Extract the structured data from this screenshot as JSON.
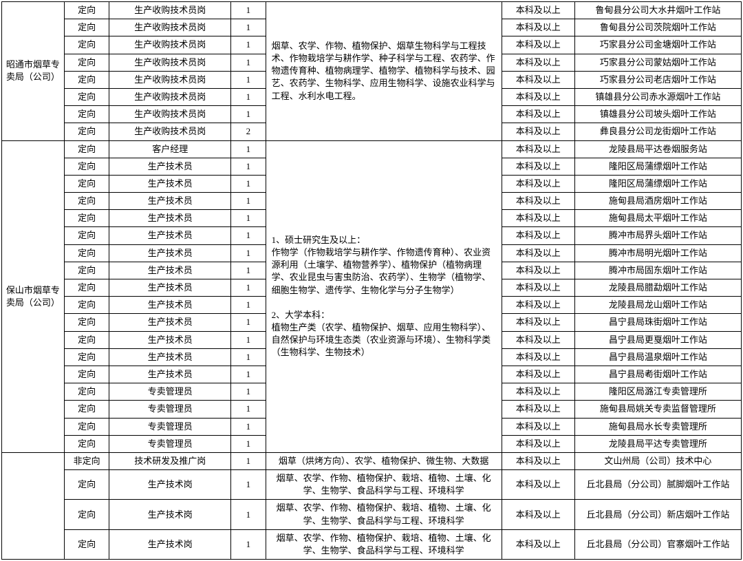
{
  "bureaus": [
    {
      "name": "昭通市烟草专卖局（公司）",
      "major_text": "烟草、农学、作物、植物保护、烟草生物科学与工程技术、作物栽培学与耕作学、种子科学与工程、农药学、作物遗传育种、植物病理学、植物学、植物科学与技术、园艺、农药学、生物科学、应用生物科学、设施农业科学与工程、水利水电工程。",
      "rows": [
        {
          "orient": "定向",
          "position": "生产收购技术员岗",
          "count": "1",
          "degree": "本科及以上",
          "unit": "鲁甸县分公司大水井烟叶工作站"
        },
        {
          "orient": "定向",
          "position": "生产收购技术员岗",
          "count": "1",
          "degree": "本科及以上",
          "unit": "鲁甸县分公司茨院烟叶工作站"
        },
        {
          "orient": "定向",
          "position": "生产收购技术员岗",
          "count": "1",
          "degree": "本科及以上",
          "unit": "巧家县分公司金塘烟叶工作站"
        },
        {
          "orient": "定向",
          "position": "生产收购技术员岗",
          "count": "1",
          "degree": "本科及以上",
          "unit": "巧家县分公司蒙姑烟叶工作站"
        },
        {
          "orient": "定向",
          "position": "生产收购技术员岗",
          "count": "1",
          "degree": "本科及以上",
          "unit": "巧家县分公司老店烟叶工作站"
        },
        {
          "orient": "定向",
          "position": "生产收购技术员岗",
          "count": "1",
          "degree": "本科及以上",
          "unit": "镇雄县分公司赤水源烟叶工作站"
        },
        {
          "orient": "定向",
          "position": "生产收购技术员岗",
          "count": "1",
          "degree": "本科及以上",
          "unit": "镇雄县分公司坡头烟叶工作站"
        },
        {
          "orient": "定向",
          "position": "生产收购技术员岗",
          "count": "2",
          "degree": "本科及以上",
          "unit": "彝良县分公司龙街烟叶工作站"
        }
      ]
    },
    {
      "name": "保山市烟草专卖局（公司）",
      "major_text": "1、硕士研究生及以上：\n作物学（作物栽培学与耕作学、作物遗传育种）、农业资源利用（土壤学、植物营养学）、植物保护（植物病理学、农业昆虫与害虫防治、农药学）、生物学（植物学、细胞生物学、遗传学、生物化学与分子生物学）\n\n2、大学本科：\n植物生产类（农学、植物保护、烟草、应用生物科学）、自然保护与环境生态类（农业资源与环境）、生物科学类（生物科学、生物技术）",
      "rows": [
        {
          "orient": "定向",
          "position": "客户经理",
          "count": "1",
          "degree": "本科及以上",
          "unit": "龙陵县局平达卷烟服务站"
        },
        {
          "orient": "定向",
          "position": "生产技术员",
          "count": "1",
          "degree": "本科及以上",
          "unit": "隆阳区局蒲缥烟叶工作站"
        },
        {
          "orient": "定向",
          "position": "生产技术员",
          "count": "1",
          "degree": "本科及以上",
          "unit": "隆阳区局蒲缥烟叶工作站"
        },
        {
          "orient": "定向",
          "position": "生产技术员",
          "count": "1",
          "degree": "本科及以上",
          "unit": "施甸县局酒房烟叶工作站"
        },
        {
          "orient": "定向",
          "position": "生产技术员",
          "count": "1",
          "degree": "本科及以上",
          "unit": "施甸县局太平烟叶工作站"
        },
        {
          "orient": "定向",
          "position": "生产技术员",
          "count": "1",
          "degree": "本科及以上",
          "unit": "腾冲市局界头烟叶工作站"
        },
        {
          "orient": "定向",
          "position": "生产技术员",
          "count": "1",
          "degree": "本科及以上",
          "unit": "腾冲市局明光烟叶工作站"
        },
        {
          "orient": "定向",
          "position": "生产技术员",
          "count": "1",
          "degree": "本科及以上",
          "unit": "腾冲市局固东烟叶工作站"
        },
        {
          "orient": "定向",
          "position": "生产技术员",
          "count": "1",
          "degree": "本科及以上",
          "unit": "龙陵县局腊勐烟叶工作站"
        },
        {
          "orient": "定向",
          "position": "生产技术员",
          "count": "1",
          "degree": "本科及以上",
          "unit": "龙陵县局龙山烟叶工作站"
        },
        {
          "orient": "定向",
          "position": "生产技术员",
          "count": "1",
          "degree": "本科及以上",
          "unit": "昌宁县局珠街烟叶工作站"
        },
        {
          "orient": "定向",
          "position": "生产技术员",
          "count": "1",
          "degree": "本科及以上",
          "unit": "昌宁县局更戛烟叶工作站"
        },
        {
          "orient": "定向",
          "position": "生产技术员",
          "count": "1",
          "degree": "本科及以上",
          "unit": "昌宁县局温泉烟叶工作站"
        },
        {
          "orient": "定向",
          "position": "生产技术员",
          "count": "1",
          "degree": "本科及以上",
          "unit": "昌宁县局耇街烟叶工作站"
        },
        {
          "orient": "定向",
          "position": "专卖管理员",
          "count": "1",
          "degree": "本科及以上",
          "unit": "隆阳区局潞江专卖管理所"
        },
        {
          "orient": "定向",
          "position": "专卖管理员",
          "count": "1",
          "degree": "本科及以上",
          "unit": "施甸县局姚关专卖监督管理所"
        },
        {
          "orient": "定向",
          "position": "专卖管理员",
          "count": "1",
          "degree": "本科及以上",
          "unit": "施甸县局水长专卖管理所"
        },
        {
          "orient": "定向",
          "position": "专卖管理员",
          "count": "1",
          "degree": "本科及以上",
          "unit": "龙陵县局平达专卖管理所"
        }
      ]
    }
  ],
  "wenshan_rows": [
    {
      "orient": "非定向",
      "position": "技术研发及推广岗",
      "count": "1",
      "degree": "本科及以上",
      "unit": "文山州局（公司）技术中心",
      "major": "烟草（烘烤方向）、农学、植物保护、微生物、大数据"
    },
    {
      "orient": "定向",
      "position": "生产技术岗",
      "count": "1",
      "degree": "本科及以上",
      "unit": "丘北县局（分公司）腻脚烟叶工作站",
      "major": "烟草、农学、作物、植物保护、栽培、植物、土壤、化学、生物学、食品科学与工程、环境科学"
    },
    {
      "orient": "定向",
      "position": "生产技术岗",
      "count": "1",
      "degree": "本科及以上",
      "unit": "丘北县局（分公司）新店烟叶工作站",
      "major": "烟草、农学、作物、植物保护、栽培、植物、土壤、化学、生物学、食品科学与工程、环境科学"
    },
    {
      "orient": "定向",
      "position": "生产技术岗",
      "count": "1",
      "degree": "本科及以上",
      "unit": "丘北县局（分公司）官寨烟叶工作站",
      "major": "烟草、农学、作物、植物保护、栽培、植物、土壤、化学、生物学、食品科学与工程、环境科学"
    }
  ]
}
